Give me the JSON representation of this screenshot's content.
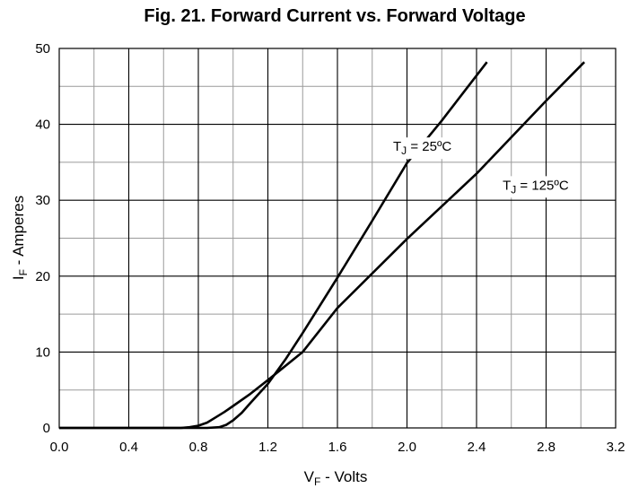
{
  "chart_data": {
    "type": "line",
    "title": "Fig. 21. Forward Current vs. Forward Voltage",
    "xlabel": {
      "main": "V",
      "sub": "F",
      "rest": " - Volts"
    },
    "ylabel": {
      "main": "I",
      "sub": "F",
      "rest": " - Amperes"
    },
    "xlim": [
      0,
      3.2
    ],
    "ylim": [
      0,
      50
    ],
    "xticks": [
      "0.0",
      "0.4",
      "0.8",
      "1.2",
      "1.6",
      "2.0",
      "2.4",
      "2.8",
      "3.2"
    ],
    "yticks": [
      "0",
      "10",
      "20",
      "30",
      "40",
      "50"
    ],
    "grid": true,
    "series": [
      {
        "name": {
          "main": "T",
          "sub": "J",
          "rest": " = 25ºC"
        },
        "label_at": [
          1.92,
          36.5
        ],
        "points": [
          [
            0.0,
            0.0
          ],
          [
            0.85,
            0.0
          ],
          [
            0.92,
            0.1
          ],
          [
            0.96,
            0.4
          ],
          [
            1.0,
            1.0
          ],
          [
            1.05,
            2.0
          ],
          [
            1.1,
            3.3
          ],
          [
            1.2,
            5.8
          ],
          [
            1.3,
            9.0
          ],
          [
            1.4,
            12.5
          ],
          [
            1.6,
            19.8
          ],
          [
            1.8,
            27.3
          ],
          [
            2.0,
            34.9
          ],
          [
            2.2,
            40.5
          ],
          [
            2.46,
            48.2
          ]
        ]
      },
      {
        "name": {
          "main": "T",
          "sub": "J",
          "rest": " = 125ºC"
        },
        "label_at": [
          2.55,
          31.4
        ],
        "points": [
          [
            0.0,
            0.0
          ],
          [
            0.7,
            0.0
          ],
          [
            0.75,
            0.1
          ],
          [
            0.8,
            0.3
          ],
          [
            0.85,
            0.7
          ],
          [
            0.9,
            1.4
          ],
          [
            0.95,
            2.1
          ],
          [
            1.0,
            2.9
          ],
          [
            1.1,
            4.5
          ],
          [
            1.2,
            6.3
          ],
          [
            1.4,
            10.0
          ],
          [
            1.6,
            15.8
          ],
          [
            2.0,
            24.9
          ],
          [
            2.4,
            33.5
          ],
          [
            2.8,
            43.1
          ],
          [
            3.02,
            48.2
          ]
        ]
      }
    ]
  }
}
